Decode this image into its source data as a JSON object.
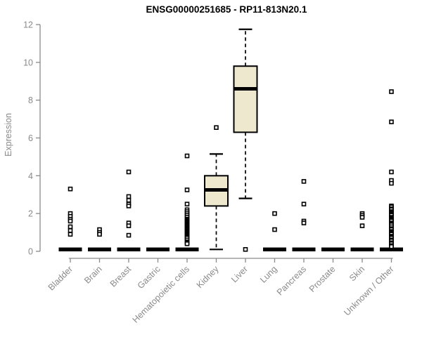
{
  "chart_data": {
    "type": "boxplot",
    "title": "ENSG00000251685 - RP11-813N20.1",
    "ylabel": "Expression",
    "xlabel": "",
    "ylim": [
      0,
      12
    ],
    "yticks": [
      0,
      2,
      4,
      6,
      8,
      10,
      12
    ],
    "grid": false,
    "legend": false,
    "categories": [
      "Bladder",
      "Brain",
      "Breast",
      "Gastric",
      "Hematopoietic cells",
      "Kidney",
      "Liver",
      "Lung",
      "Pancreas",
      "Prostate",
      "Skin",
      "Unknown / Other"
    ],
    "boxes": [
      {
        "category": "Bladder",
        "whisker_low": 0,
        "q1": 0,
        "median": 0,
        "q3": 0,
        "whisker_high": 0,
        "outliers": [
          3.3,
          2.0,
          1.85,
          1.7,
          1.6,
          1.3,
          1.1,
          0.9
        ]
      },
      {
        "category": "Brain",
        "whisker_low": 0,
        "q1": 0,
        "median": 0,
        "q3": 0,
        "whisker_high": 0,
        "outliers": [
          1.15,
          1.0,
          0.9
        ]
      },
      {
        "category": "Breast",
        "whisker_low": 0,
        "q1": 0,
        "median": 0,
        "q3": 0,
        "whisker_high": 0,
        "outliers": [
          4.2,
          2.9,
          2.7,
          2.5,
          2.4,
          1.5,
          1.35,
          0.85
        ]
      },
      {
        "category": "Gastric",
        "whisker_low": 0,
        "q1": 0,
        "median": 0,
        "q3": 0,
        "whisker_high": 0,
        "outliers": []
      },
      {
        "category": "Hematopoietic cells",
        "whisker_low": 0,
        "q1": 0,
        "median": 0,
        "q3": 0,
        "whisker_high": 0,
        "outliers": [
          5.05,
          3.25,
          2.5,
          2.2,
          2.1,
          2.0,
          1.9,
          1.8,
          1.7,
          1.65,
          1.6,
          1.55,
          1.5,
          1.45,
          1.4,
          1.35,
          1.3,
          1.25,
          1.2,
          1.15,
          1.1,
          1.05,
          1.0,
          0.95,
          0.9,
          0.85,
          0.8,
          0.75,
          0.7,
          0.6,
          0.5,
          0.45,
          0.4
        ]
      },
      {
        "category": "Kidney",
        "whisker_low": 0.1,
        "q1": 2.4,
        "median": 3.25,
        "q3": 4.0,
        "whisker_high": 5.15,
        "outliers": [
          6.55
        ]
      },
      {
        "category": "Liver",
        "whisker_low": 2.8,
        "q1": 6.3,
        "median": 8.6,
        "q3": 9.8,
        "whisker_high": 11.75,
        "outliers": [
          0.1
        ]
      },
      {
        "category": "Lung",
        "whisker_low": 0,
        "q1": 0,
        "median": 0,
        "q3": 0,
        "whisker_high": 0,
        "outliers": [
          2.0,
          1.15
        ]
      },
      {
        "category": "Pancreas",
        "whisker_low": 0,
        "q1": 0,
        "median": 0,
        "q3": 0,
        "whisker_high": 0,
        "outliers": [
          3.7,
          2.5,
          1.6,
          1.5
        ]
      },
      {
        "category": "Prostate",
        "whisker_low": 0,
        "q1": 0,
        "median": 0,
        "q3": 0,
        "whisker_high": 0,
        "outliers": []
      },
      {
        "category": "Skin",
        "whisker_low": 0,
        "q1": 0,
        "median": 0,
        "q3": 0,
        "whisker_high": 0,
        "outliers": [
          2.0,
          1.9,
          1.8,
          1.35
        ]
      },
      {
        "category": "Unknown / Other",
        "whisker_low": 0,
        "q1": 0,
        "median": 0,
        "q3": 0,
        "whisker_high": 0,
        "outliers": [
          8.45,
          6.85,
          4.2,
          3.75,
          3.6,
          2.4,
          2.35,
          2.25,
          2.2,
          2.1,
          2.05,
          2.0,
          1.95,
          1.9,
          1.8,
          1.75,
          1.7,
          1.65,
          1.6,
          1.5,
          1.45,
          1.4,
          1.3,
          1.2,
          1.15,
          1.05,
          1.0,
          0.95,
          0.9,
          0.8,
          0.75,
          0.7,
          0.6,
          0.55,
          0.45,
          0.4,
          0.3,
          0.25
        ]
      }
    ],
    "colors": {
      "box_fill": "#EEE8CF",
      "box_stroke": "#000000",
      "median": "#000000",
      "whisker": "#000000",
      "outlier_fill": "#ffffff",
      "outlier_stroke": "#000000",
      "axis": "#8a8a8a",
      "tick_label": "#8a8a8a",
      "title": "#000000"
    }
  }
}
